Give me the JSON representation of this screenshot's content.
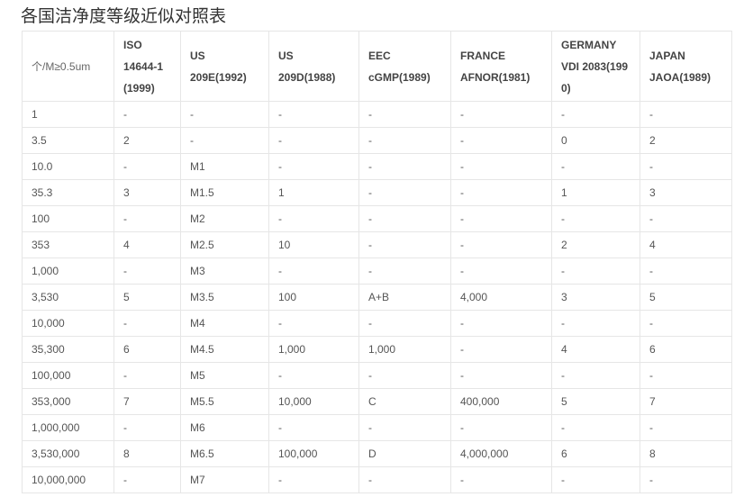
{
  "title": "各国洁净度等级近似对照表",
  "headers": [
    [
      "个/M≥0.5um"
    ],
    [
      "ISO",
      "14644-1",
      "(1999)"
    ],
    [
      "US",
      "209E(1992)"
    ],
    [
      "US",
      "209D(1988)"
    ],
    [
      "EEC",
      "cGMP(1989)"
    ],
    [
      "FRANCE",
      "AFNOR(1981)"
    ],
    [
      "GERMANY",
      "VDI 2083(199",
      "0)"
    ],
    [
      "JAPAN",
      "JAOA(1989)"
    ]
  ],
  "rows": [
    [
      "1",
      "-",
      "-",
      "-",
      "-",
      "-",
      "-",
      "-"
    ],
    [
      "3.5",
      "2",
      "-",
      "-",
      "-",
      "-",
      "0",
      "2"
    ],
    [
      "10.0",
      "-",
      "M1",
      "-",
      "-",
      "-",
      "-",
      "-"
    ],
    [
      "35.3",
      "3",
      "M1.5",
      "1",
      "-",
      "-",
      "1",
      "3"
    ],
    [
      "100",
      "-",
      "M2",
      "-",
      "-",
      "-",
      "-",
      "-"
    ],
    [
      "353",
      "4",
      "M2.5",
      "10",
      "-",
      "-",
      "2",
      "4"
    ],
    [
      "1,000",
      "-",
      "M3",
      "-",
      "-",
      "-",
      "-",
      "-"
    ],
    [
      "3,530",
      "5",
      "M3.5",
      "100",
      "A+B",
      "4,000",
      "3",
      "5"
    ],
    [
      "10,000",
      "-",
      "M4",
      "-",
      "-",
      "-",
      "-",
      "-"
    ],
    [
      "35,300",
      "6",
      "M4.5",
      "1,000",
      "1,000",
      "-",
      "4",
      "6"
    ],
    [
      "100,000",
      "-",
      "M5",
      "-",
      "-",
      "-",
      "-",
      "-"
    ],
    [
      "353,000",
      "7",
      "M5.5",
      "10,000",
      "C",
      "400,000",
      "5",
      "7"
    ],
    [
      "1,000,000",
      "-",
      "M6",
      "-",
      "-",
      "-",
      "-",
      "-"
    ],
    [
      "3,530,000",
      "8",
      "M6.5",
      "100,000",
      "D",
      "4,000,000",
      "6",
      "8"
    ],
    [
      "10,000,000",
      "-",
      "M7",
      "-",
      "-",
      "-",
      "-",
      "-"
    ]
  ]
}
